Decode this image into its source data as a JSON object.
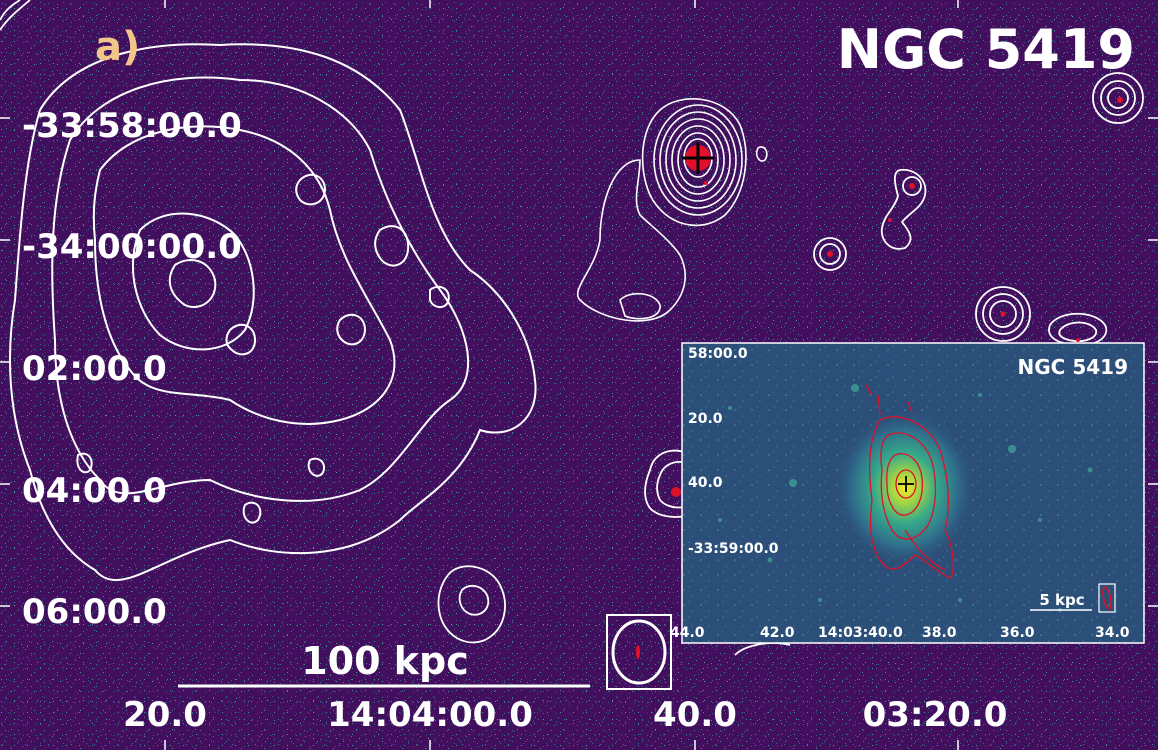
{
  "panel_label": "a)",
  "main_title": "NGC 5419",
  "dec_ticks": [
    "-33:58:00.0",
    "-34:00:00.0",
    "02:00.0",
    "04:00.0",
    "06:00.0"
  ],
  "ra_ticks": [
    "20.0",
    "14:04:00.0",
    "40.0",
    "03:20.0"
  ],
  "scale_bar_label": "100 kpc",
  "inset": {
    "title": "NGC 5419",
    "dec_ticks": [
      "58:00.0",
      "20.0",
      "40.0",
      "-33:59:00.0"
    ],
    "ra_ticks": [
      "44.0",
      "42.0",
      "14:03:40.0",
      "38.0",
      "36.0",
      "34.0"
    ],
    "scale_bar_label": "5 kpc"
  },
  "colors": {
    "background": "#420f5e",
    "contour_main": "#ffffff",
    "contour_inset": "#e0102a",
    "panel_label": "#f2c58a",
    "inset_background": "#2c4f79"
  }
}
